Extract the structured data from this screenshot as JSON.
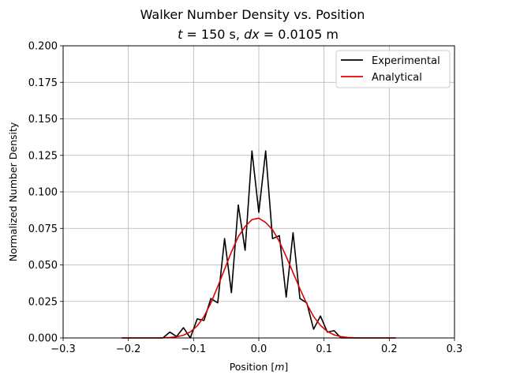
{
  "chart_data": {
    "type": "line",
    "title": "Walker Number Density vs. Position",
    "subtitle": "t = 150 s, dx = 0.0105 m",
    "xlabel": "Position [m]",
    "ylabel": "Normalized Number Density",
    "xlim": [
      -0.3,
      0.3
    ],
    "ylim": [
      0.0,
      0.2
    ],
    "xticks": [
      "−0.3",
      "−0.2",
      "−0.1",
      "0.0",
      "0.1",
      "0.2",
      "0.3"
    ],
    "yticks": [
      "0.000",
      "0.025",
      "0.050",
      "0.075",
      "0.100",
      "0.125",
      "0.150",
      "0.175",
      "0.200"
    ],
    "grid": true,
    "legend_position": "top-right",
    "series": [
      {
        "name": "Experimental",
        "color": "#000000",
        "x": [
          -0.21,
          -0.1995,
          -0.189,
          -0.1785,
          -0.168,
          -0.1575,
          -0.147,
          -0.1365,
          -0.126,
          -0.1155,
          -0.105,
          -0.0945,
          -0.084,
          -0.0735,
          -0.063,
          -0.0525,
          -0.042,
          -0.0315,
          -0.021,
          -0.0105,
          0.0,
          0.0105,
          0.021,
          0.0315,
          0.042,
          0.0525,
          0.063,
          0.0735,
          0.084,
          0.0945,
          0.105,
          0.1155,
          0.126,
          0.1365,
          0.147,
          0.1575,
          0.168,
          0.1785,
          0.189,
          0.1995,
          0.21
        ],
        "y": [
          0.0,
          0.0,
          0.0,
          0.0,
          0.0,
          0.0,
          0.0,
          0.004,
          0.001,
          0.007,
          0.0,
          0.013,
          0.012,
          0.027,
          0.024,
          0.068,
          0.031,
          0.091,
          0.06,
          0.128,
          0.086,
          0.128,
          0.068,
          0.07,
          0.028,
          0.072,
          0.027,
          0.024,
          0.006,
          0.015,
          0.004,
          0.005,
          0.0,
          0.0,
          0.0,
          0.0,
          0.0,
          0.0,
          0.0,
          0.0,
          0.0
        ]
      },
      {
        "name": "Analytical",
        "color": "#e00000",
        "x": [
          -0.21,
          -0.1995,
          -0.189,
          -0.1785,
          -0.168,
          -0.1575,
          -0.147,
          -0.1365,
          -0.126,
          -0.1155,
          -0.105,
          -0.0945,
          -0.084,
          -0.0735,
          -0.063,
          -0.0525,
          -0.042,
          -0.0315,
          -0.021,
          -0.0105,
          0.0,
          0.0105,
          0.021,
          0.0315,
          0.042,
          0.0525,
          0.063,
          0.0735,
          0.084,
          0.0945,
          0.105,
          0.1155,
          0.126,
          0.1365,
          0.147,
          0.1575,
          0.168,
          0.1785,
          0.189,
          0.1995,
          0.21
        ],
        "y": [
          0.0,
          0.0,
          0.0,
          0.0,
          0.0,
          0.0,
          0.0001,
          0.0003,
          0.0008,
          0.0019,
          0.0041,
          0.0082,
          0.0147,
          0.0239,
          0.0352,
          0.047,
          0.0589,
          0.0693,
          0.0763,
          0.081,
          0.082,
          0.079,
          0.0741,
          0.066,
          0.0557,
          0.0447,
          0.0337,
          0.0234,
          0.0147,
          0.0086,
          0.0045,
          0.0021,
          0.0009,
          0.0003,
          0.0001,
          0.0,
          0.0,
          0.0,
          0.0,
          0.0,
          0.0
        ]
      }
    ]
  }
}
